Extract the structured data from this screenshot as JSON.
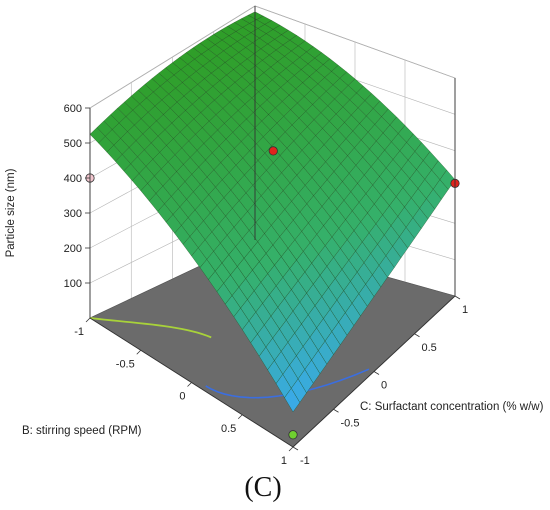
{
  "chart_data": {
    "type": "surface",
    "panel_label": "(C)",
    "z_axis": {
      "label": "Particle size (nm)",
      "ticks": [
        "100",
        "200",
        "300",
        "400",
        "500",
        "600"
      ]
    },
    "b_axis": {
      "label": "B: stirring speed (RPM)",
      "ticks": [
        "-1",
        "-0.5",
        "0",
        "0.5",
        "1"
      ]
    },
    "c_axis": {
      "label": "C: Surfactant concentration (% w/w)",
      "ticks": [
        "-1",
        "-0.5",
        "0",
        "0.5",
        "1"
      ]
    },
    "zlim": [
      0,
      600
    ],
    "b_range": [
      -1,
      1
    ],
    "c_range": [
      -1,
      1
    ],
    "surface_corners": [
      {
        "b": -1,
        "c": -1,
        "z": 525
      },
      {
        "b": -1,
        "c": 1,
        "z": 585
      },
      {
        "b": 1,
        "c": 1,
        "z": 320
      },
      {
        "b": 1,
        "c": -1,
        "z": 100
      }
    ],
    "design_points": [
      {
        "b": -1,
        "c": -1,
        "z": 400,
        "color": "#f2c6cf"
      },
      {
        "b": 0,
        "c": 0,
        "z": 480,
        "color": "#e0241c"
      },
      {
        "b": 1,
        "c": 1,
        "z": 310,
        "color": "#e0241c"
      },
      {
        "b": 1,
        "c": -1,
        "z": 35,
        "color": "#6fcf2f"
      }
    ],
    "colors": {
      "high": "#2f9e28",
      "mid": "#35b06a",
      "low": "#3aaaf0",
      "floor": "#6b6b6b"
    }
  }
}
